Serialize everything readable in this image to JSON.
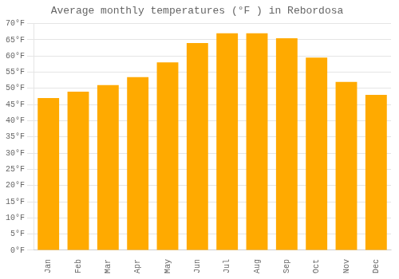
{
  "chart_data": {
    "type": "bar",
    "title": "Average monthly temperatures (°F ) in Rebordosa",
    "categories": [
      "Jan",
      "Feb",
      "Mar",
      "Apr",
      "May",
      "Jun",
      "Jul",
      "Aug",
      "Sep",
      "Oct",
      "Nov",
      "Dec"
    ],
    "values": [
      47,
      49,
      51,
      53.5,
      58,
      64,
      67,
      67,
      65.5,
      59.5,
      52,
      48
    ],
    "color": "#FFAA00",
    "ylim": [
      0,
      70
    ],
    "yticks": [
      {
        "value": 0,
        "label": "0°F"
      },
      {
        "value": 5,
        "label": "5°F"
      },
      {
        "value": 10,
        "label": "10°F"
      },
      {
        "value": 15,
        "label": "15°F"
      },
      {
        "value": 20,
        "label": "20°F"
      },
      {
        "value": 25,
        "label": "25°F"
      },
      {
        "value": 30,
        "label": "30°F"
      },
      {
        "value": 35,
        "label": "35°F"
      },
      {
        "value": 40,
        "label": "40°F"
      },
      {
        "value": 45,
        "label": "45°F"
      },
      {
        "value": 50,
        "label": "50°F"
      },
      {
        "value": 55,
        "label": "55°F"
      },
      {
        "value": 60,
        "label": "60°F"
      },
      {
        "value": 65,
        "label": "65°F"
      },
      {
        "value": 70,
        "label": "70°F"
      }
    ],
    "grid": true
  }
}
